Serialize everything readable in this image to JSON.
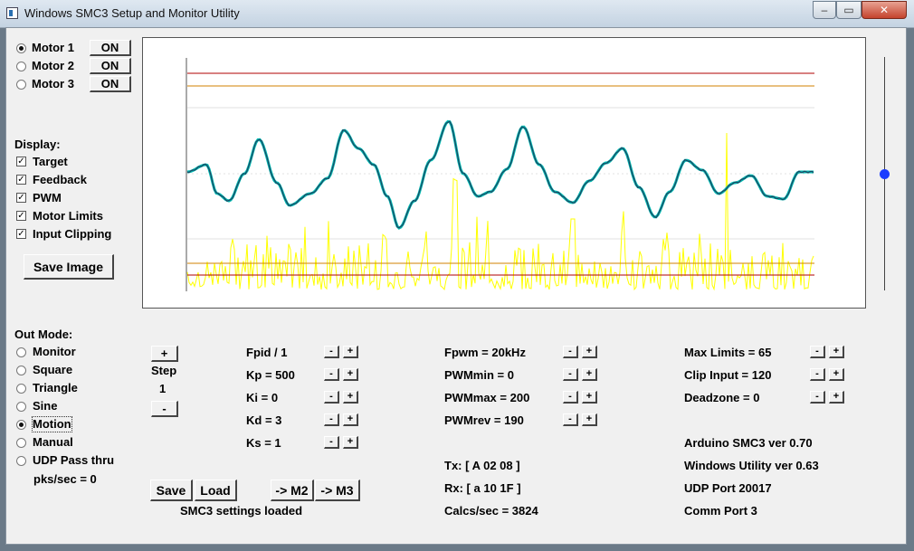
{
  "window": {
    "title": "Windows SMC3 Setup and Monitor Utility",
    "min_glyph": "–",
    "max_glyph": "▭",
    "close_glyph": "✕"
  },
  "motors": [
    {
      "label": "Motor 1",
      "selected": true,
      "button": "ON"
    },
    {
      "label": "Motor 2",
      "selected": false,
      "button": "ON"
    },
    {
      "label": "Motor 3",
      "selected": false,
      "button": "ON"
    }
  ],
  "display": {
    "heading": "Display:",
    "options": [
      {
        "label": "Target",
        "checked": true
      },
      {
        "label": "Feedback",
        "checked": true
      },
      {
        "label": "PWM",
        "checked": true
      },
      {
        "label": "Motor Limits",
        "checked": true
      },
      {
        "label": "Input Clipping",
        "checked": true
      }
    ],
    "save_image": "Save Image",
    "check_glyph": "✓"
  },
  "out_mode": {
    "heading": "Out Mode:",
    "options": [
      {
        "label": "Monitor",
        "selected": false
      },
      {
        "label": "Square",
        "selected": false
      },
      {
        "label": "Triangle",
        "selected": false
      },
      {
        "label": "Sine",
        "selected": false
      },
      {
        "label": "Motion",
        "selected": true
      },
      {
        "label": "Manual",
        "selected": false
      },
      {
        "label": "UDP Pass thru",
        "selected": false
      }
    ],
    "pks_sec": "pks/sec = 0"
  },
  "step": {
    "plus": "+",
    "label": "Step",
    "value": "1",
    "minus": "-"
  },
  "pid": [
    {
      "label": "Fpid / 1"
    },
    {
      "label": "Kp = 500"
    },
    {
      "label": "Ki = 0"
    },
    {
      "label": "Kd = 3"
    },
    {
      "label": "Ks = 1"
    }
  ],
  "pwm": [
    {
      "label": "Fpwm = 20kHz"
    },
    {
      "label": "PWMmin = 0"
    },
    {
      "label": "PWMmax = 200"
    },
    {
      "label": "PWMrev = 190"
    }
  ],
  "limits": [
    {
      "label": "Max Limits = 65"
    },
    {
      "label": "Clip Input = 120"
    },
    {
      "label": "Deadzone = 0"
    }
  ],
  "adjust": {
    "minus": "-",
    "plus": "+"
  },
  "comm": {
    "tx": "Tx: [ A 02 08 ]",
    "rx": "Rx: [ a 10 1F ]",
    "calcs": "Calcs/sec = 3824"
  },
  "info": {
    "arduino": "Arduino SMC3 ver 0.70",
    "windows": "Windows Utility ver 0.63",
    "udp": "UDP Port 20017",
    "comm_port": "Comm Port 3"
  },
  "bottom_buttons": {
    "save": "Save",
    "load": "Load",
    "to_m2": "-> M2",
    "to_m3": "-> M3"
  },
  "status": "SMC3 settings loaded",
  "slider": {
    "level": 0.5
  },
  "colors": {
    "target": "#00b8b0",
    "feedback": "#1a4a66",
    "pwm": "#ffff00",
    "limit_line": "#b00000",
    "clip_line": "#d08000",
    "slider_thumb": "#1a3cff"
  }
}
